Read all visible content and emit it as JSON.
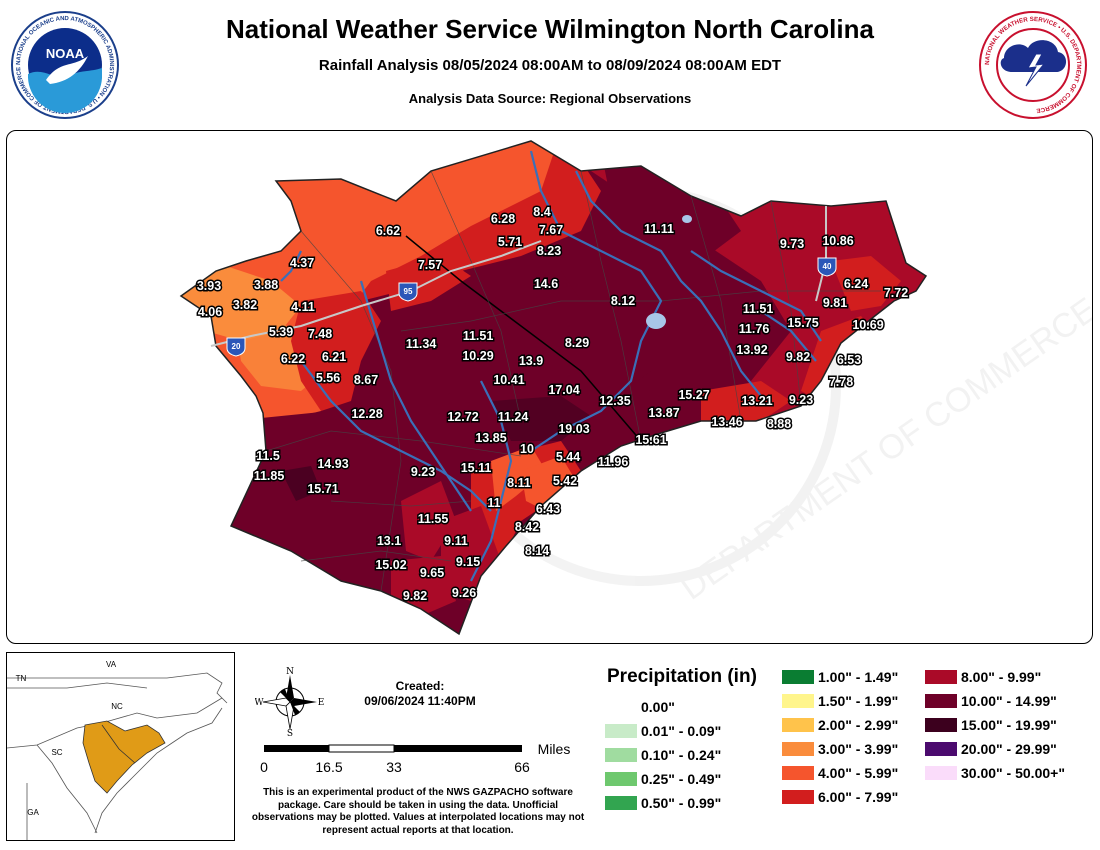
{
  "header": {
    "title": "National Weather Service Wilmington North Carolina",
    "subtitle": "Rainfall Analysis 08/05/2024 08:00AM to 08/09/2024 08:00AM EDT",
    "source": "Analysis Data Source: Regional Observations"
  },
  "logos": {
    "noaa_text": "NOAA",
    "noaa_ring": "NATIONAL OCEANIC AND ATMOSPHERIC ADMINISTRATION • U.S. DEPARTMENT OF COMMERCE",
    "nws_ring": "NATIONAL WEATHER SERVICE • U.S. DEPARTMENT OF COMMERCE"
  },
  "map": {
    "watermark_text": "DEPARTMENT OF COMMERCE",
    "interstates": [
      "95",
      "20",
      "40"
    ],
    "stations": [
      {
        "v": "6.62"
      },
      {
        "v": "6.28"
      },
      {
        "v": "8.4"
      },
      {
        "v": "7.67"
      },
      {
        "v": "5.71"
      },
      {
        "v": "8.23"
      },
      {
        "v": "11.11"
      },
      {
        "v": "9.73"
      },
      {
        "v": "10.86"
      },
      {
        "v": "4.37"
      },
      {
        "v": "7.57"
      },
      {
        "v": "3.93"
      },
      {
        "v": "3.88"
      },
      {
        "v": "3.82"
      },
      {
        "v": "4.06"
      },
      {
        "v": "4.11"
      },
      {
        "v": "14.6"
      },
      {
        "v": "8.12"
      },
      {
        "v": "6.24"
      },
      {
        "v": "7.72"
      },
      {
        "v": "9.81"
      },
      {
        "v": "11.51"
      },
      {
        "v": "11.76"
      },
      {
        "v": "15.75"
      },
      {
        "v": "10.69"
      },
      {
        "v": "5.39"
      },
      {
        "v": "7.48"
      },
      {
        "v": "11.34"
      },
      {
        "v": "11.51"
      },
      {
        "v": "10.29"
      },
      {
        "v": "6.22"
      },
      {
        "v": "6.21"
      },
      {
        "v": "13.9"
      },
      {
        "v": "8.29"
      },
      {
        "v": "13.92"
      },
      {
        "v": "9.82"
      },
      {
        "v": "6.53"
      },
      {
        "v": "5.56"
      },
      {
        "v": "8.67"
      },
      {
        "v": "10.41"
      },
      {
        "v": "17.04"
      },
      {
        "v": "7.78"
      },
      {
        "v": "15.27"
      },
      {
        "v": "12.35"
      },
      {
        "v": "13.21"
      },
      {
        "v": "9.23"
      },
      {
        "v": "12.28"
      },
      {
        "v": "12.72"
      },
      {
        "v": "11.24"
      },
      {
        "v": "13.87"
      },
      {
        "v": "13.46"
      },
      {
        "v": "8.88"
      },
      {
        "v": "19.03"
      },
      {
        "v": "13.85"
      },
      {
        "v": "15.61"
      },
      {
        "v": "10"
      },
      {
        "v": "11.5"
      },
      {
        "v": "14.93"
      },
      {
        "v": "5.44"
      },
      {
        "v": "11.96"
      },
      {
        "v": "11.85"
      },
      {
        "v": "9.23"
      },
      {
        "v": "15.11"
      },
      {
        "v": "5.42"
      },
      {
        "v": "15.71"
      },
      {
        "v": "8.11"
      },
      {
        "v": "11"
      },
      {
        "v": "6.43"
      },
      {
        "v": "11.55"
      },
      {
        "v": "8.42"
      },
      {
        "v": "13.1"
      },
      {
        "v": "9.11"
      },
      {
        "v": "8.14"
      },
      {
        "v": "15.02"
      },
      {
        "v": "9.65"
      },
      {
        "v": "9.15"
      },
      {
        "v": "9.82"
      },
      {
        "v": "9.26"
      }
    ]
  },
  "inset": {
    "states": [
      "VA",
      "TN",
      "NC",
      "SC",
      "GA"
    ],
    "highlight_color": "#e09b17"
  },
  "compass": {
    "n": "N",
    "s": "S",
    "e": "E",
    "w": "W"
  },
  "created": {
    "label": "Created:",
    "value": "09/06/2024 11:40PM"
  },
  "scalebar": {
    "ticks": [
      "0",
      "16.5",
      "33",
      "66"
    ],
    "unit": "Miles"
  },
  "note": "This is an experimental product of the NWS GAZPACHO software package. Care should be taken in using the data. Unofficial observations may be plotted. Values at interpolated locations may not represent actual reports at that location.",
  "legend": {
    "title": "Precipitation (in)",
    "items": [
      {
        "label": "0.00\"",
        "color": "#ffffff"
      },
      {
        "label": "0.01\" - 0.09\"",
        "color": "#c8ebc8"
      },
      {
        "label": "0.10\" - 0.24\"",
        "color": "#a0dca0"
      },
      {
        "label": "0.25\" - 0.49\"",
        "color": "#6ec86e"
      },
      {
        "label": "0.50\" - 0.99\"",
        "color": "#32a550"
      },
      {
        "label": "1.00\" - 1.49\"",
        "color": "#0a7d32"
      },
      {
        "label": "1.50\" - 1.99\"",
        "color": "#fff58c"
      },
      {
        "label": "2.00\" - 2.99\"",
        "color": "#ffc34b"
      },
      {
        "label": "3.00\" - 3.99\"",
        "color": "#fa8c3c"
      },
      {
        "label": "4.00\" - 5.99\"",
        "color": "#f5552d"
      },
      {
        "label": "6.00\" - 7.99\"",
        "color": "#d21e1e"
      },
      {
        "label": "8.00\" - 9.99\"",
        "color": "#aa0a28"
      },
      {
        "label": "10.00\" - 14.99\"",
        "color": "#6e0028"
      },
      {
        "label": "15.00\" - 19.99\"",
        "color": "#3c001e"
      },
      {
        "label": "20.00\" - 29.99\"",
        "color": "#4b0a6e"
      },
      {
        "label": "30.00\" - 50.00+\"",
        "color": "#fadcfa"
      }
    ]
  }
}
